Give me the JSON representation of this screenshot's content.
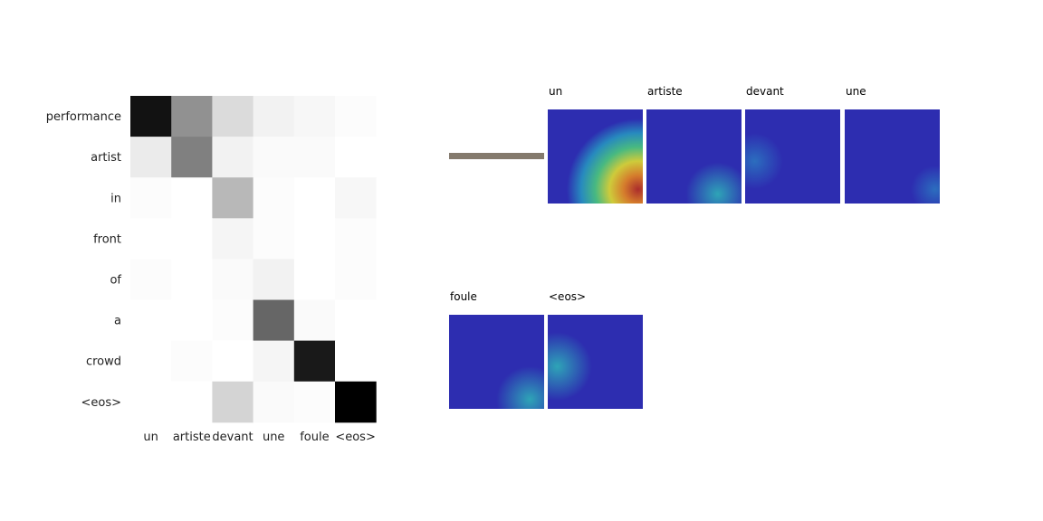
{
  "chart_data": [
    {
      "type": "heatmap",
      "x_tokens": [
        "un",
        "artiste",
        "devant",
        "une",
        "foule",
        "<eos>"
      ],
      "y_tokens": [
        "performance",
        "artist",
        "in",
        "front",
        "of",
        "a",
        "crowd",
        "<eos>"
      ],
      "colormap": "greys",
      "values": [
        [
          0.93,
          0.43,
          0.14,
          0.05,
          0.03,
          0.01
        ],
        [
          0.08,
          0.5,
          0.05,
          0.02,
          0.02,
          0.0
        ],
        [
          0.01,
          0.0,
          0.28,
          0.01,
          0.0,
          0.03
        ],
        [
          0.0,
          0.0,
          0.04,
          0.01,
          0.0,
          0.01
        ],
        [
          0.01,
          0.0,
          0.02,
          0.05,
          0.0,
          0.01
        ],
        [
          0.0,
          0.0,
          0.01,
          0.6,
          0.02,
          0.0
        ],
        [
          0.0,
          0.01,
          0.0,
          0.04,
          0.9,
          0.0
        ],
        [
          0.0,
          0.0,
          0.17,
          0.02,
          0.01,
          1.0
        ]
      ]
    },
    {
      "type": "heatmap",
      "colormap": "jet-overlay",
      "panels": [
        {
          "title": "un",
          "peak": [
            0.95,
            0.85
          ],
          "strength": 1.0
        },
        {
          "title": "artiste",
          "peak": [
            0.75,
            0.9
          ],
          "strength": 0.25
        },
        {
          "title": "devant",
          "peak": [
            0.1,
            0.55
          ],
          "strength": 0.18
        },
        {
          "title": "une",
          "peak": [
            0.95,
            0.85
          ],
          "strength": 0.1
        },
        {
          "title": "foule",
          "peak": [
            0.85,
            0.9
          ],
          "strength": 0.28
        },
        {
          "title": "<eos>",
          "peak": [
            0.1,
            0.55
          ],
          "strength": 0.3
        }
      ]
    }
  ]
}
